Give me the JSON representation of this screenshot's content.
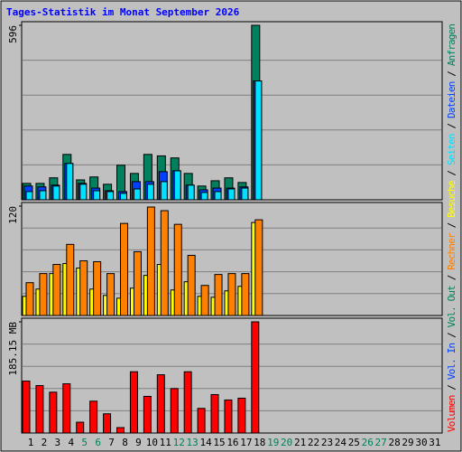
{
  "chart_data": [
    {
      "type": "bar",
      "title": "Tages-Statistik im Monat September 2026",
      "ylim": [
        0,
        596
      ],
      "yticks": [
        596
      ],
      "series": [
        {
          "name": "Anfragen",
          "color": "#00805c",
          "values": [
            56,
            56,
            75,
            155,
            68,
            78,
            53,
            118,
            90,
            155,
            150,
            143,
            90,
            47,
            65,
            75,
            59,
            596,
            null,
            null,
            null,
            null,
            null,
            null,
            null,
            null,
            null,
            null,
            null,
            null,
            null
          ]
        },
        {
          "name": "Dateien",
          "color": "#0040ff",
          "values": [
            47,
            44,
            50,
            124,
            56,
            40,
            31,
            28,
            62,
            62,
            96,
            99,
            50,
            34,
            40,
            40,
            44,
            406,
            null,
            null,
            null,
            null,
            null,
            null,
            null,
            null,
            null,
            null,
            null,
            null,
            null
          ]
        },
        {
          "name": "Seiten",
          "color": "#00e0ff",
          "values": [
            28,
            31,
            47,
            124,
            53,
            31,
            28,
            22,
            37,
            53,
            62,
            99,
            50,
            25,
            28,
            37,
            40,
            406,
            null,
            null,
            null,
            null,
            null,
            null,
            null,
            null,
            null,
            null,
            null,
            null,
            null
          ]
        }
      ]
    },
    {
      "type": "bar",
      "ylim": [
        0,
        120
      ],
      "yticks": [
        120
      ],
      "series": [
        {
          "name": "Besuche",
          "color": "#ffff00",
          "values": [
            21,
            29,
            46,
            57,
            52,
            29,
            22,
            19,
            30,
            44,
            56,
            28,
            37,
            21,
            20,
            27,
            32,
            102,
            null,
            null,
            null,
            null,
            null,
            null,
            null,
            null,
            null,
            null,
            null,
            null,
            null
          ]
        },
        {
          "name": "Rechner",
          "color": "#ff8000",
          "values": [
            36,
            46,
            56,
            78,
            60,
            59,
            46,
            101,
            70,
            119,
            115,
            100,
            66,
            33,
            45,
            46,
            46,
            105,
            null,
            null,
            null,
            null,
            null,
            null,
            null,
            null,
            null,
            null,
            null,
            null,
            null
          ]
        }
      ]
    },
    {
      "type": "bar",
      "ylim": [
        0,
        185.15
      ],
      "yticks": [
        {
          "value": 185.15,
          "label": "185.15 MB"
        }
      ],
      "categories": [
        "1",
        "2",
        "3",
        "4",
        "5",
        "6",
        "7",
        "8",
        "9",
        "10",
        "11",
        "12",
        "13",
        "14",
        "15",
        "16",
        "17",
        "18",
        "19",
        "20",
        "21",
        "22",
        "23",
        "24",
        "25",
        "26",
        "27",
        "28",
        "29",
        "30",
        "31"
      ],
      "category_colors": [
        "#000000",
        "#000000",
        "#000000",
        "#000000",
        "#00805c",
        "#00805c",
        "#000000",
        "#000000",
        "#000000",
        "#000000",
        "#000000",
        "#00805c",
        "#00805c",
        "#000000",
        "#000000",
        "#000000",
        "#000000",
        "#000000",
        "#00805c",
        "#00805c",
        "#000000",
        "#000000",
        "#000000",
        "#000000",
        "#000000",
        "#00805c",
        "#00805c",
        "#000000",
        "#000000",
        "#000000",
        "#000000"
      ],
      "series": [
        {
          "name": "Volumen",
          "color": "#ff0000",
          "values": [
            86.5,
            79,
            68,
            82,
            18,
            53,
            32,
            9,
            102,
            61,
            97,
            74,
            102,
            41,
            64,
            55,
            58,
            185.15,
            null,
            null,
            null,
            null,
            null,
            null,
            null,
            null,
            null,
            null,
            null,
            null,
            null
          ]
        },
        {
          "name": "Vol. In",
          "color": "#0040ff",
          "values": [
            null,
            null,
            null,
            null,
            null,
            null,
            null,
            null,
            null,
            null,
            null,
            null,
            null,
            null,
            null,
            null,
            null,
            null,
            null,
            null,
            null,
            null,
            null,
            null,
            null,
            null,
            null,
            null,
            null,
            null,
            null
          ]
        },
        {
          "name": "Vol. Out",
          "color": "#00805c",
          "values": [
            null,
            null,
            null,
            null,
            null,
            null,
            null,
            null,
            null,
            null,
            null,
            null,
            null,
            null,
            null,
            null,
            null,
            null,
            null,
            null,
            null,
            null,
            null,
            null,
            null,
            null,
            null,
            null,
            null,
            null,
            null
          ]
        }
      ]
    }
  ]
}
